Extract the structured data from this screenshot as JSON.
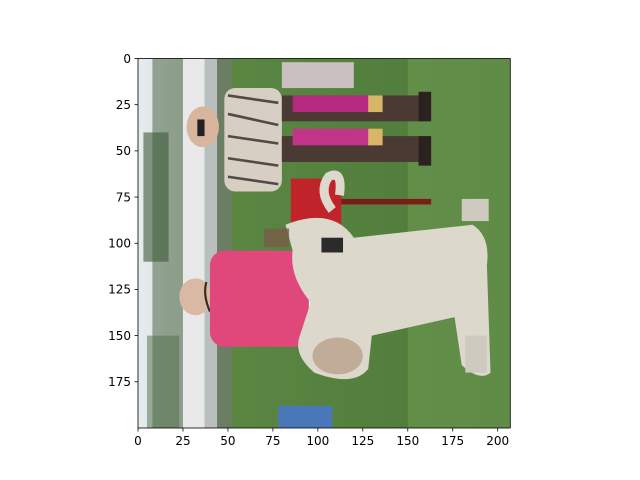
{
  "chart_data": {
    "type": "heatmap",
    "subtype": "image",
    "title": "",
    "xlabel": "",
    "ylabel": "",
    "xlim": [
      0,
      207
    ],
    "ylim": [
      200,
      0
    ],
    "y_axis_inverted": true,
    "grid": false,
    "legend": null,
    "xticks": [
      0,
      25,
      50,
      75,
      100,
      125,
      150,
      175,
      200
    ],
    "yticks": [
      0,
      25,
      50,
      75,
      100,
      125,
      150,
      175
    ],
    "image": {
      "description": "Rotated photograph: two women presenting a white/cream Afghan hound at a dog show with ribbons, on grass",
      "width_units": 207,
      "height_units": 200
    }
  }
}
